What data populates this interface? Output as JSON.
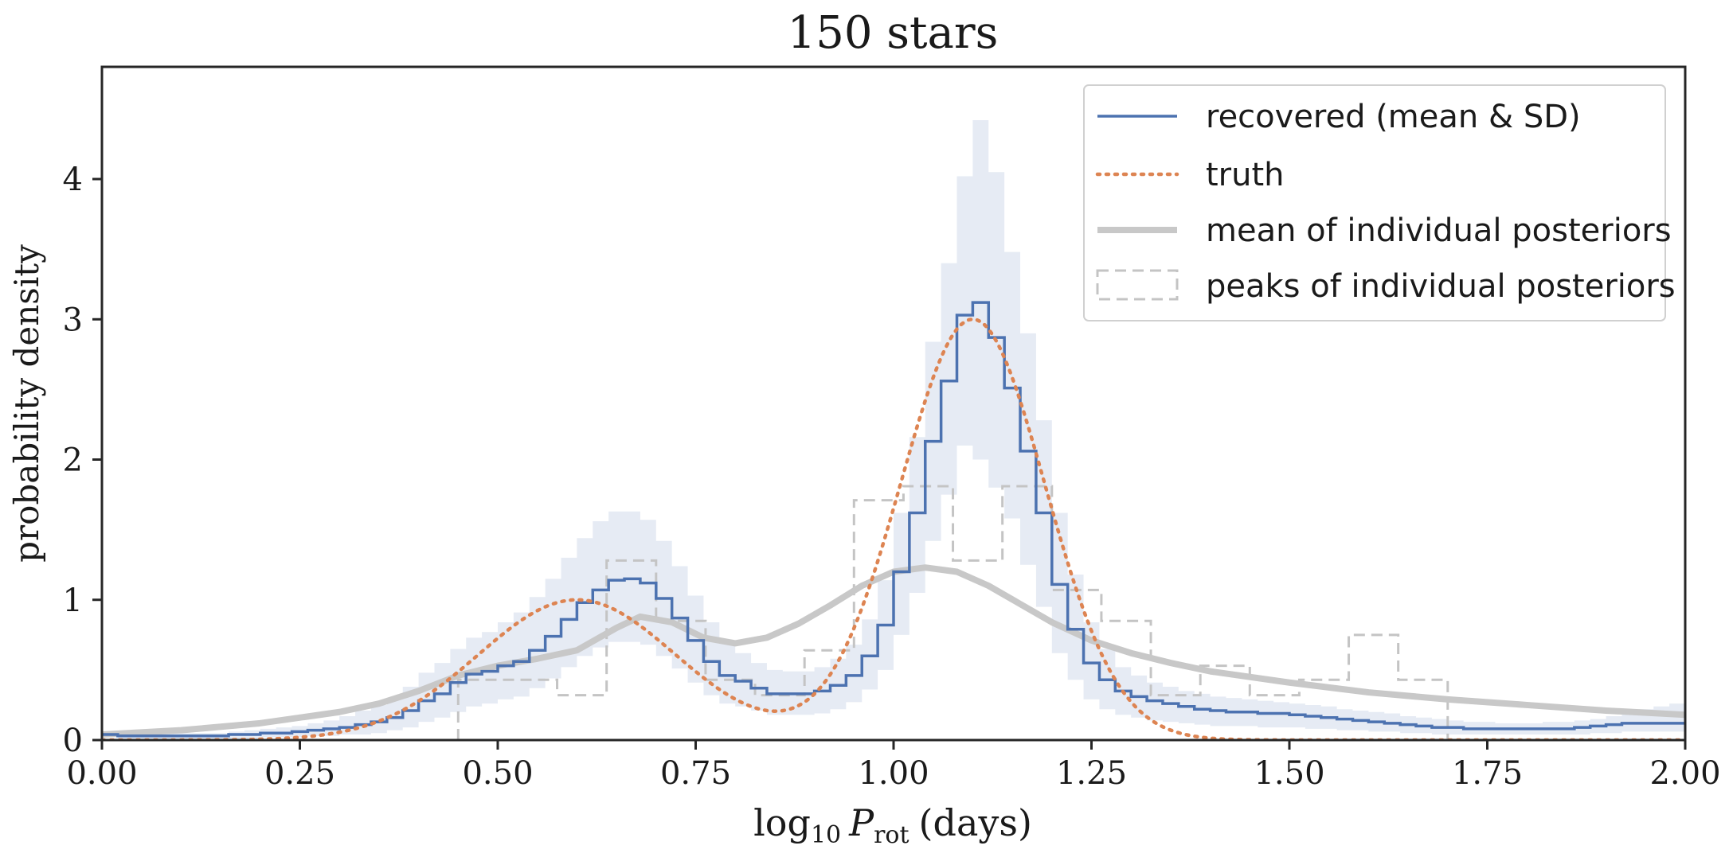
{
  "chart_data": {
    "type": "line",
    "title": "150 stars",
    "xlabel": "log10 P_rot (days)",
    "xlabel_parts": {
      "base": "log",
      "sub": "10",
      "var": "P",
      "var_sub": "rot",
      "unit": "(days)"
    },
    "ylabel": "probability density",
    "xlim": [
      0,
      2
    ],
    "ylim": [
      0,
      4.8
    ],
    "xticks": [
      0,
      0.25,
      0.5,
      0.75,
      1.0,
      1.25,
      1.5,
      1.75,
      2.0
    ],
    "xtick_labels": [
      "0.00",
      "0.25",
      "0.50",
      "0.75",
      "1.00",
      "1.25",
      "1.50",
      "1.75",
      "2.00"
    ],
    "yticks": [
      0,
      1,
      2,
      3,
      4
    ],
    "ytick_labels": [
      "0",
      "1",
      "2",
      "3",
      "4"
    ],
    "grid": false,
    "legend_position": "top-right",
    "series": [
      {
        "name": "recovered (mean & SD)",
        "kind": "step-band",
        "color": "#4c72b0",
        "band_color": "#e6ebf4",
        "bin_width": 0.02,
        "mean": [
          0.04,
          0.03,
          0.03,
          0.03,
          0.03,
          0.03,
          0.03,
          0.03,
          0.04,
          0.04,
          0.05,
          0.05,
          0.06,
          0.07,
          0.08,
          0.09,
          0.11,
          0.13,
          0.16,
          0.21,
          0.28,
          0.33,
          0.41,
          0.47,
          0.49,
          0.53,
          0.56,
          0.64,
          0.74,
          0.86,
          0.98,
          1.07,
          1.14,
          1.15,
          1.12,
          1.01,
          0.87,
          0.71,
          0.56,
          0.46,
          0.42,
          0.37,
          0.33,
          0.33,
          0.33,
          0.35,
          0.39,
          0.46,
          0.6,
          0.82,
          1.2,
          1.62,
          2.13,
          2.56,
          3.03,
          3.12,
          2.87,
          2.51,
          2.06,
          1.62,
          1.11,
          0.79,
          0.55,
          0.43,
          0.35,
          0.31,
          0.28,
          0.26,
          0.24,
          0.22,
          0.21,
          0.2,
          0.2,
          0.19,
          0.19,
          0.18,
          0.17,
          0.16,
          0.15,
          0.14,
          0.13,
          0.12,
          0.11,
          0.1,
          0.09,
          0.09,
          0.08,
          0.08,
          0.08,
          0.08,
          0.08,
          0.08,
          0.08,
          0.09,
          0.1,
          0.11,
          0.12,
          0.12,
          0.12,
          0.12
        ],
        "upper": [
          0.06,
          0.05,
          0.05,
          0.05,
          0.05,
          0.05,
          0.05,
          0.05,
          0.06,
          0.07,
          0.08,
          0.09,
          0.1,
          0.12,
          0.14,
          0.17,
          0.21,
          0.25,
          0.3,
          0.38,
          0.48,
          0.55,
          0.65,
          0.73,
          0.77,
          0.84,
          0.91,
          1.02,
          1.15,
          1.3,
          1.44,
          1.56,
          1.63,
          1.63,
          1.57,
          1.42,
          1.24,
          1.03,
          0.84,
          0.7,
          0.62,
          0.55,
          0.5,
          0.49,
          0.49,
          0.52,
          0.58,
          0.68,
          0.86,
          1.14,
          1.62,
          2.16,
          2.84,
          3.4,
          4.02,
          4.42,
          4.05,
          3.48,
          2.9,
          2.28,
          1.62,
          1.18,
          0.84,
          0.65,
          0.52,
          0.46,
          0.41,
          0.38,
          0.35,
          0.33,
          0.31,
          0.3,
          0.29,
          0.28,
          0.27,
          0.26,
          0.25,
          0.24,
          0.22,
          0.21,
          0.2,
          0.19,
          0.17,
          0.16,
          0.15,
          0.14,
          0.13,
          0.13,
          0.12,
          0.12,
          0.12,
          0.13,
          0.13,
          0.14,
          0.15,
          0.17,
          0.19,
          0.22,
          0.24,
          0.26
        ],
        "lower": [
          0.02,
          0.01,
          0.01,
          0.01,
          0.01,
          0.01,
          0.01,
          0.01,
          0.01,
          0.01,
          0.02,
          0.02,
          0.02,
          0.03,
          0.03,
          0.04,
          0.04,
          0.05,
          0.07,
          0.09,
          0.13,
          0.16,
          0.2,
          0.24,
          0.26,
          0.29,
          0.31,
          0.37,
          0.44,
          0.52,
          0.6,
          0.66,
          0.7,
          0.7,
          0.68,
          0.6,
          0.51,
          0.41,
          0.32,
          0.26,
          0.24,
          0.21,
          0.18,
          0.18,
          0.18,
          0.19,
          0.22,
          0.27,
          0.36,
          0.5,
          0.75,
          1.05,
          1.42,
          1.75,
          2.1,
          2.0,
          1.8,
          1.58,
          1.25,
          0.95,
          0.62,
          0.43,
          0.29,
          0.22,
          0.18,
          0.16,
          0.14,
          0.13,
          0.12,
          0.11,
          0.1,
          0.1,
          0.1,
          0.09,
          0.09,
          0.09,
          0.08,
          0.08,
          0.07,
          0.07,
          0.06,
          0.06,
          0.05,
          0.05,
          0.04,
          0.04,
          0.04,
          0.04,
          0.04,
          0.04,
          0.04,
          0.04,
          0.04,
          0.04,
          0.05,
          0.05,
          0.06,
          0.06,
          0.06,
          0.06
        ]
      },
      {
        "name": "truth",
        "kind": "function",
        "color": "#dd8452",
        "style": "dotted",
        "components": [
          {
            "weight": 0.3133,
            "mean": 0.6,
            "sd": 0.125
          },
          {
            "weight": 0.6867,
            "mean": 1.1,
            "sd": 0.0913
          }
        ]
      },
      {
        "name": "mean of individual posteriors",
        "kind": "curve",
        "color": "#c8c8c8",
        "x": [
          0.0,
          0.1,
          0.2,
          0.3,
          0.35,
          0.4,
          0.45,
          0.5,
          0.55,
          0.6,
          0.65,
          0.68,
          0.72,
          0.76,
          0.8,
          0.84,
          0.88,
          0.92,
          0.96,
          1.0,
          1.04,
          1.08,
          1.12,
          1.16,
          1.2,
          1.25,
          1.3,
          1.35,
          1.4,
          1.5,
          1.6,
          1.7,
          1.8,
          1.9,
          2.0
        ],
        "y": [
          0.04,
          0.07,
          0.12,
          0.2,
          0.26,
          0.35,
          0.46,
          0.53,
          0.58,
          0.64,
          0.8,
          0.88,
          0.84,
          0.73,
          0.69,
          0.73,
          0.83,
          0.96,
          1.1,
          1.2,
          1.23,
          1.2,
          1.1,
          0.97,
          0.84,
          0.71,
          0.62,
          0.55,
          0.49,
          0.41,
          0.34,
          0.29,
          0.25,
          0.21,
          0.18
        ]
      },
      {
        "name": "peaks of individual posteriors",
        "kind": "histogram",
        "color": "#c4c4c4",
        "style": "dashed",
        "edges": [
          0.45,
          0.5125,
          0.575,
          0.6375,
          0.7,
          0.7625,
          0.825,
          0.8875,
          0.95,
          1.0125,
          1.075,
          1.1375,
          1.2,
          1.2625,
          1.325,
          1.3875,
          1.45,
          1.5125,
          1.575,
          1.6375,
          1.7
        ],
        "values": [
          0.43,
          0.43,
          0.32,
          1.28,
          0.85,
          0.43,
          0.32,
          0.64,
          1.71,
          1.81,
          1.28,
          1.81,
          1.07,
          0.85,
          0.32,
          0.53,
          0.32,
          0.43,
          0.75,
          0.43
        ]
      }
    ]
  }
}
